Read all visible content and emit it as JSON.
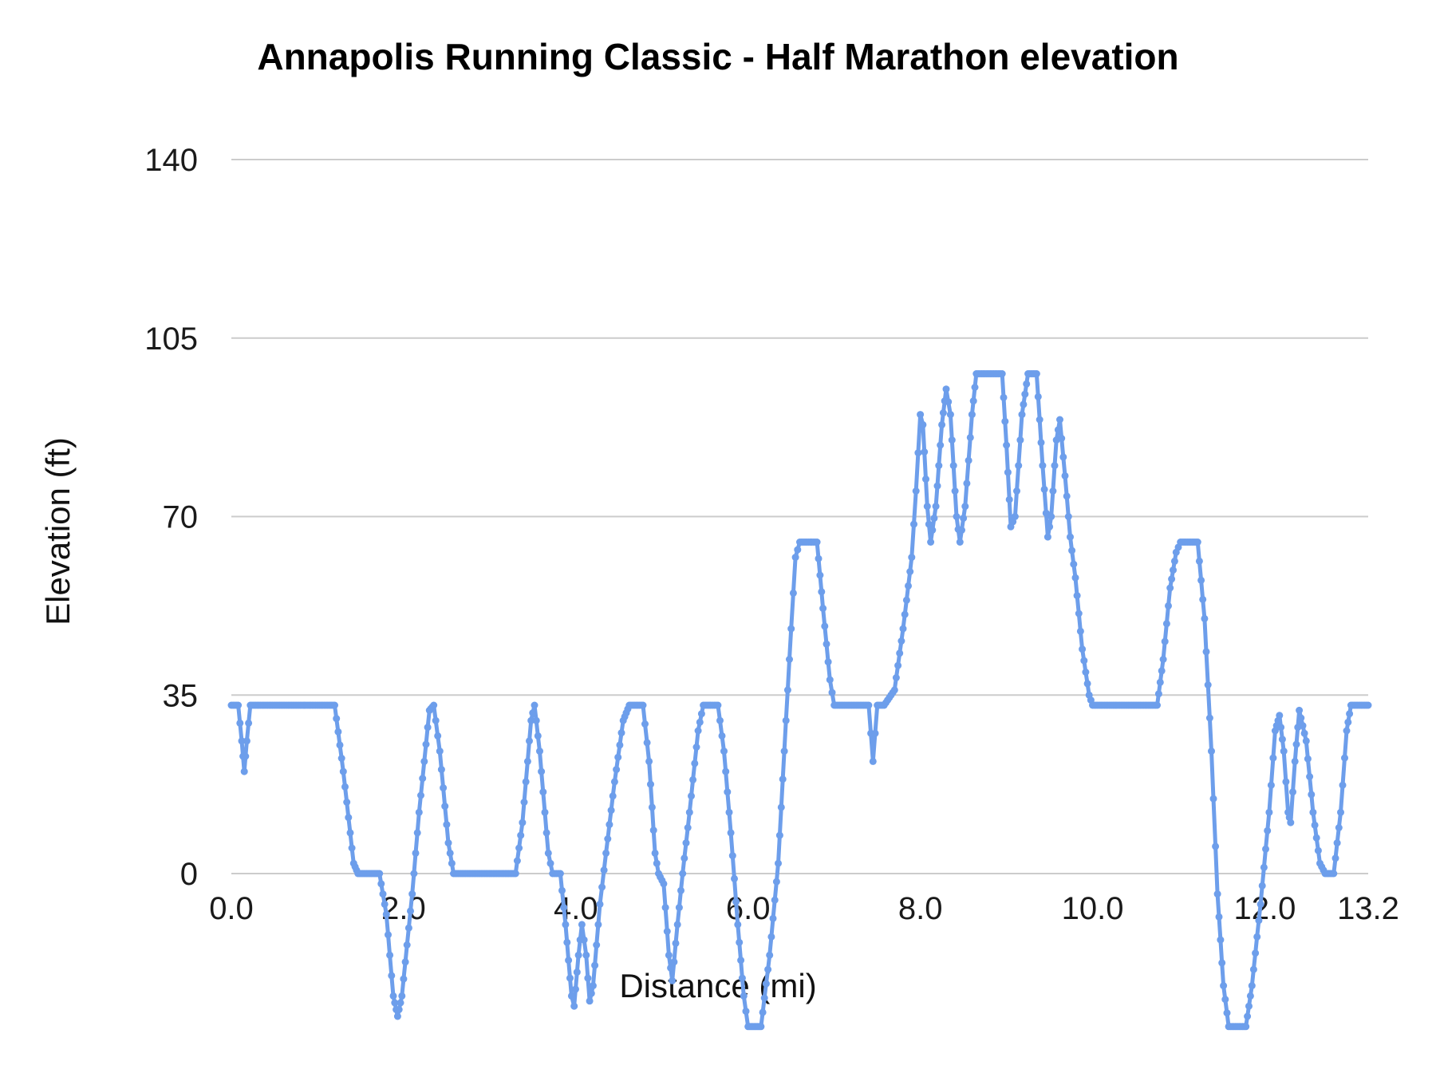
{
  "chart_data": {
    "type": "line",
    "title": "Annapolis Running Classic - Half Marathon elevation",
    "xlabel": "Distance (mi)",
    "ylabel": "Elevation (ft)",
    "xlim": [
      0,
      13.2
    ],
    "ylim": [
      -32,
      140
    ],
    "grid": true,
    "legend": "none",
    "y_ticks": [
      0,
      35,
      70,
      105,
      140
    ],
    "x_ticks": [
      0.0,
      2.0,
      4.0,
      6.0,
      8.0,
      10.0,
      12.0,
      13.2
    ],
    "x_tick_labels": [
      "0.0",
      "2.0",
      "4.0",
      "6.0",
      "8.0",
      "10.0",
      "12.0",
      "13.2"
    ],
    "series": [
      {
        "name": "Elevation",
        "color": "#6d9eeb",
        "points": [
          [
            0.0,
            33
          ],
          [
            0.08,
            33
          ],
          [
            0.12,
            26
          ],
          [
            0.15,
            20
          ],
          [
            0.18,
            26
          ],
          [
            0.22,
            33
          ],
          [
            1.2,
            33
          ],
          [
            1.3,
            20
          ],
          [
            1.42,
            2
          ],
          [
            1.47,
            0
          ],
          [
            1.72,
            0
          ],
          [
            1.8,
            -8
          ],
          [
            1.88,
            -24
          ],
          [
            1.93,
            -28
          ],
          [
            1.98,
            -24
          ],
          [
            2.1,
            -4
          ],
          [
            2.18,
            12
          ],
          [
            2.3,
            32
          ],
          [
            2.35,
            33
          ],
          [
            2.42,
            24
          ],
          [
            2.52,
            6
          ],
          [
            2.58,
            0
          ],
          [
            3.3,
            0
          ],
          [
            3.38,
            10
          ],
          [
            3.48,
            30
          ],
          [
            3.52,
            33
          ],
          [
            3.58,
            24
          ],
          [
            3.68,
            4
          ],
          [
            3.73,
            0
          ],
          [
            3.82,
            0
          ],
          [
            3.88,
            -10
          ],
          [
            3.95,
            -24
          ],
          [
            3.98,
            -26
          ],
          [
            4.03,
            -16
          ],
          [
            4.07,
            -10
          ],
          [
            4.12,
            -16
          ],
          [
            4.16,
            -25
          ],
          [
            4.2,
            -22
          ],
          [
            4.28,
            -6
          ],
          [
            4.35,
            4
          ],
          [
            4.45,
            18
          ],
          [
            4.55,
            30
          ],
          [
            4.62,
            33
          ],
          [
            4.78,
            33
          ],
          [
            4.85,
            22
          ],
          [
            4.92,
            4
          ],
          [
            4.96,
            0
          ],
          [
            5.02,
            -2
          ],
          [
            5.08,
            -16
          ],
          [
            5.12,
            -21
          ],
          [
            5.18,
            -10
          ],
          [
            5.24,
            0
          ],
          [
            5.32,
            12
          ],
          [
            5.42,
            28
          ],
          [
            5.48,
            33
          ],
          [
            5.65,
            33
          ],
          [
            5.72,
            24
          ],
          [
            5.8,
            8
          ],
          [
            5.88,
            -10
          ],
          [
            5.95,
            -24
          ],
          [
            6.0,
            -30
          ],
          [
            6.15,
            -30
          ],
          [
            6.25,
            -16
          ],
          [
            6.35,
            2
          ],
          [
            6.42,
            24
          ],
          [
            6.5,
            48
          ],
          [
            6.55,
            62
          ],
          [
            6.6,
            65
          ],
          [
            6.8,
            65
          ],
          [
            6.87,
            52
          ],
          [
            6.95,
            38
          ],
          [
            7.0,
            33
          ],
          [
            7.4,
            33
          ],
          [
            7.45,
            22
          ],
          [
            7.5,
            33
          ],
          [
            7.58,
            33
          ],
          [
            7.7,
            36
          ],
          [
            7.8,
            48
          ],
          [
            7.9,
            62
          ],
          [
            7.95,
            75
          ],
          [
            8.0,
            90
          ],
          [
            8.03,
            88
          ],
          [
            8.08,
            72
          ],
          [
            8.12,
            65
          ],
          [
            8.18,
            72
          ],
          [
            8.25,
            88
          ],
          [
            8.3,
            95
          ],
          [
            8.35,
            90
          ],
          [
            8.42,
            70
          ],
          [
            8.46,
            65
          ],
          [
            8.52,
            72
          ],
          [
            8.6,
            90
          ],
          [
            8.65,
            98
          ],
          [
            8.95,
            98
          ],
          [
            9.0,
            84
          ],
          [
            9.05,
            68
          ],
          [
            9.1,
            70
          ],
          [
            9.18,
            90
          ],
          [
            9.25,
            98
          ],
          [
            9.35,
            98
          ],
          [
            9.42,
            80
          ],
          [
            9.48,
            66
          ],
          [
            9.52,
            70
          ],
          [
            9.58,
            85
          ],
          [
            9.62,
            89
          ],
          [
            9.68,
            78
          ],
          [
            9.74,
            66
          ],
          [
            9.8,
            58
          ],
          [
            9.88,
            44
          ],
          [
            9.96,
            35
          ],
          [
            10.0,
            33
          ],
          [
            10.75,
            33
          ],
          [
            10.82,
            42
          ],
          [
            10.9,
            56
          ],
          [
            10.97,
            63
          ],
          [
            11.02,
            65
          ],
          [
            11.22,
            65
          ],
          [
            11.3,
            50
          ],
          [
            11.38,
            24
          ],
          [
            11.45,
            -4
          ],
          [
            11.52,
            -22
          ],
          [
            11.58,
            -30
          ],
          [
            11.78,
            -30
          ],
          [
            11.85,
            -22
          ],
          [
            11.95,
            -6
          ],
          [
            12.05,
            12
          ],
          [
            12.12,
            28
          ],
          [
            12.17,
            31
          ],
          [
            12.22,
            24
          ],
          [
            12.27,
            12
          ],
          [
            12.3,
            10
          ],
          [
            12.35,
            22
          ],
          [
            12.4,
            32
          ],
          [
            12.48,
            26
          ],
          [
            12.56,
            12
          ],
          [
            12.64,
            2
          ],
          [
            12.7,
            0
          ],
          [
            12.8,
            0
          ],
          [
            12.88,
            12
          ],
          [
            12.95,
            28
          ],
          [
            13.0,
            33
          ],
          [
            13.2,
            33
          ]
        ]
      }
    ]
  },
  "style": {
    "grid_color": "#cccccc",
    "text_color": "#1a1a1a",
    "background_color": "#ffffff",
    "line_color": "#6d9eeb"
  }
}
